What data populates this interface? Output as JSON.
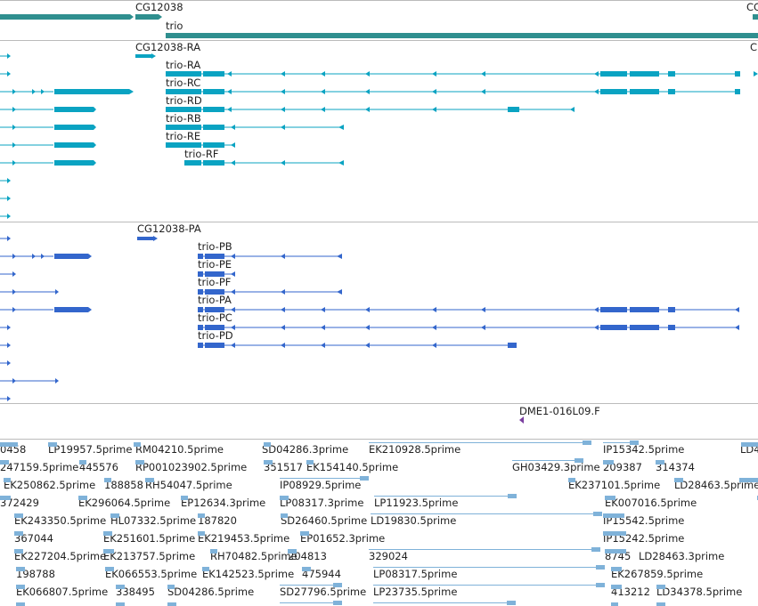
{
  "colors": {
    "gene": "#2f8f8f",
    "transcript": "#0aa3c2",
    "protein": "#3366cc",
    "clone": "#7b3fa0",
    "est": "#7fb2d9",
    "divider": "#bbbbbb",
    "text": "#222222"
  },
  "gene_track": {
    "labels": [
      {
        "text": "CG12038"
      },
      {
        "text": "trio"
      },
      {
        "text": "CG"
      }
    ]
  },
  "transcript_track": {
    "labels": [
      {
        "text": "CG12038-RA"
      },
      {
        "text": "trio-RA"
      },
      {
        "text": "trio-RC"
      },
      {
        "text": "trio-RD"
      },
      {
        "text": "trio-RB"
      },
      {
        "text": "trio-RE"
      },
      {
        "text": "trio-RF"
      },
      {
        "text": "C"
      }
    ]
  },
  "protein_track": {
    "labels": [
      {
        "text": "CG12038-PA"
      },
      {
        "text": "trio-PB"
      },
      {
        "text": "trio-PE"
      },
      {
        "text": "trio-PF"
      },
      {
        "text": "trio-PA"
      },
      {
        "text": "trio-PC"
      },
      {
        "text": "trio-PD"
      }
    ]
  },
  "clone_track": {
    "labels": [
      {
        "text": "DME1-016L09.F"
      }
    ]
  },
  "est_track": {
    "labels": [
      {
        "text": "0458"
      },
      {
        "text": "LP19957.5prime"
      },
      {
        "text": "RM04210.5prime"
      },
      {
        "text": "SD04286.3prime"
      },
      {
        "text": "EK210928.5prime"
      },
      {
        "text": "IP15342.5prime"
      },
      {
        "text": "LD4"
      },
      {
        "text": "247159.5prime"
      },
      {
        "text": "445576"
      },
      {
        "text": "RP001023902.5prime"
      },
      {
        "text": "351517"
      },
      {
        "text": "EK154140.5prime"
      },
      {
        "text": "GH03429.3prime"
      },
      {
        "text": "209387"
      },
      {
        "text": "314374"
      },
      {
        "text": "EK250862.5prime"
      },
      {
        "text": "188858"
      },
      {
        "text": "RH54047.5prime"
      },
      {
        "text": "IP08929.5prime"
      },
      {
        "text": "EK237101.5prime"
      },
      {
        "text": "LD28463.5prime"
      },
      {
        "text": "372429"
      },
      {
        "text": "EK296064.5prime"
      },
      {
        "text": "EP12634.3prime"
      },
      {
        "text": "LP08317.3prime"
      },
      {
        "text": "LP11923.5prime"
      },
      {
        "text": "EK007016.5prime"
      },
      {
        "text": "EK243350.5prime"
      },
      {
        "text": "HL07332.5prime"
      },
      {
        "text": "187820"
      },
      {
        "text": "SD26460.5prime"
      },
      {
        "text": "LD19830.5prime"
      },
      {
        "text": "IP15542.5prime"
      },
      {
        "text": "367044"
      },
      {
        "text": "EK251601.5prime"
      },
      {
        "text": "EK219453.5prime"
      },
      {
        "text": "EP01652.3prime"
      },
      {
        "text": "IP15242.5prime"
      },
      {
        "text": "EK227204.5prime"
      },
      {
        "text": "EK213757.5prime"
      },
      {
        "text": "RH70482.5prime"
      },
      {
        "text": "204813"
      },
      {
        "text": "329024"
      },
      {
        "text": "8745"
      },
      {
        "text": "LD28463.3prime"
      },
      {
        "text": "198788"
      },
      {
        "text": "EK066553.5prime"
      },
      {
        "text": "EK142523.5prime"
      },
      {
        "text": "475944"
      },
      {
        "text": "LP08317.5prime"
      },
      {
        "text": "EK267859.5prime"
      },
      {
        "text": "EK066807.5prime"
      },
      {
        "text": "338495"
      },
      {
        "text": "SD04286.5prime"
      },
      {
        "text": "SD27796.5prime"
      },
      {
        "text": "LP23735.5prime"
      },
      {
        "text": "413212"
      },
      {
        "text": "LD34378.5prime"
      }
    ]
  }
}
